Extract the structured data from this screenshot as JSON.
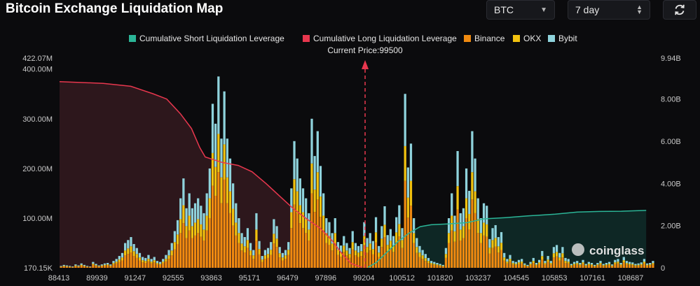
{
  "page": {
    "title": "Bitcoin Exchange Liquidation Map",
    "symbol_select": {
      "value": "BTC"
    },
    "range_select": {
      "value": "7 day"
    },
    "watermark": "coinglass"
  },
  "colors": {
    "short_cumulative": "#2bb597",
    "long_cumulative": "#e8374e",
    "binance": "#f08a10",
    "okx": "#f2c20f",
    "bybit": "#8fd3dc",
    "price_marker": "#e8374e"
  },
  "chart_data": {
    "type": "bar",
    "title": "",
    "current_price_label": "Current Price:99500",
    "current_price": 99500,
    "x_tick_labels": [
      "88413",
      "89939",
      "91247",
      "92555",
      "93863",
      "95171",
      "96479",
      "97896",
      "99204",
      "100512",
      "101820",
      "103237",
      "104545",
      "105853",
      "107161",
      "108687"
    ],
    "x_range": [
      88413,
      110000
    ],
    "y_left_tick_labels": [
      "170.15K",
      "100.00M",
      "200.00M",
      "300.00M",
      "400.00M",
      "422.07M"
    ],
    "y_left_unit": "M",
    "y_left_range": [
      0.17,
      422.07
    ],
    "y_right_tick_labels": [
      "0",
      "2.00B",
      "4.00B",
      "6.00B",
      "8.00B",
      "9.94B"
    ],
    "y_right_unit": "B",
    "y_right_range": [
      0,
      9.94
    ],
    "legend": [
      {
        "label": "Cumulative Short Liquidation Leverage",
        "key": "short_cumulative"
      },
      {
        "label": "Cumulative Long Liquidation Leverage",
        "key": "long_cumulative"
      },
      {
        "label": "Binance",
        "key": "binance"
      },
      {
        "label": "OKX",
        "key": "okx"
      },
      {
        "label": "Bybit",
        "key": "bybit"
      }
    ],
    "bar_totals_M": [
      4,
      6,
      5,
      4,
      3,
      7,
      5,
      9,
      6,
      4,
      3,
      12,
      8,
      5,
      7,
      9,
      10,
      7,
      14,
      18,
      24,
      30,
      50,
      56,
      62,
      48,
      40,
      30,
      22,
      20,
      26,
      18,
      22,
      14,
      12,
      18,
      26,
      36,
      50,
      74,
      96,
      140,
      180,
      120,
      150,
      120,
      130,
      140,
      125,
      110,
      150,
      200,
      330,
      290,
      385,
      260,
      355,
      260,
      220,
      170,
      130,
      100,
      70,
      62,
      80,
      50,
      36,
      110,
      54,
      24,
      36,
      40,
      52,
      98,
      84,
      42,
      30,
      36,
      52,
      160,
      255,
      220,
      180,
      160,
      140,
      110,
      300,
      225,
      275,
      205,
      150,
      100,
      92,
      70,
      100,
      52,
      45,
      64,
      50,
      40,
      74,
      50,
      44,
      48,
      92,
      60,
      70,
      54,
      102,
      44,
      84,
      124,
      66,
      78,
      64,
      102,
      126,
      80,
      350,
      202,
      250,
      100,
      60,
      44,
      36,
      28,
      20,
      14,
      12,
      10,
      8,
      6,
      40,
      100,
      150,
      105,
      235,
      110,
      120,
      200,
      155,
      275,
      220,
      140,
      100,
      130,
      125,
      58,
      80,
      86,
      62,
      72,
      30,
      18,
      26,
      14,
      12,
      16,
      18,
      9,
      6,
      12,
      20,
      10,
      16,
      34,
      14,
      24,
      14,
      42,
      46,
      30,
      42,
      20,
      18,
      8,
      12,
      14,
      10,
      16,
      8,
      12,
      10,
      6,
      10,
      14,
      8,
      10,
      12,
      7,
      16,
      18,
      10,
      22,
      14,
      12,
      11,
      8,
      9,
      11,
      18,
      9,
      10,
      14
    ],
    "bar_mix": {
      "binance": 0.5,
      "okx": 0.2,
      "bybit": 0.3
    },
    "long_cumulative_B": [
      [
        88413,
        8.82
      ],
      [
        90000,
        8.74
      ],
      [
        91000,
        8.6
      ],
      [
        91800,
        8.25
      ],
      [
        92300,
        8.0
      ],
      [
        92800,
        7.3
      ],
      [
        93200,
        6.6
      ],
      [
        93500,
        5.7
      ],
      [
        93700,
        5.25
      ],
      [
        94300,
        5.0
      ],
      [
        94900,
        4.85
      ],
      [
        95400,
        4.55
      ],
      [
        95900,
        4.0
      ],
      [
        96400,
        3.4
      ],
      [
        96900,
        2.8
      ],
      [
        97400,
        2.3
      ],
      [
        97900,
        1.85
      ],
      [
        98300,
        1.3
      ],
      [
        98700,
        0.6
      ],
      [
        99000,
        0.2
      ],
      [
        99400,
        0.02
      ]
    ],
    "short_cumulative_B": [
      [
        99600,
        0.02
      ],
      [
        99900,
        0.25
      ],
      [
        100300,
        0.75
      ],
      [
        100700,
        1.25
      ],
      [
        101100,
        1.65
      ],
      [
        101500,
        1.95
      ],
      [
        101900,
        2.04
      ],
      [
        102500,
        2.08
      ],
      [
        103200,
        2.14
      ],
      [
        103800,
        2.32
      ],
      [
        104600,
        2.38
      ],
      [
        105400,
        2.46
      ],
      [
        106400,
        2.54
      ],
      [
        107200,
        2.64
      ],
      [
        108000,
        2.67
      ],
      [
        108800,
        2.68
      ],
      [
        109700,
        2.72
      ]
    ]
  }
}
